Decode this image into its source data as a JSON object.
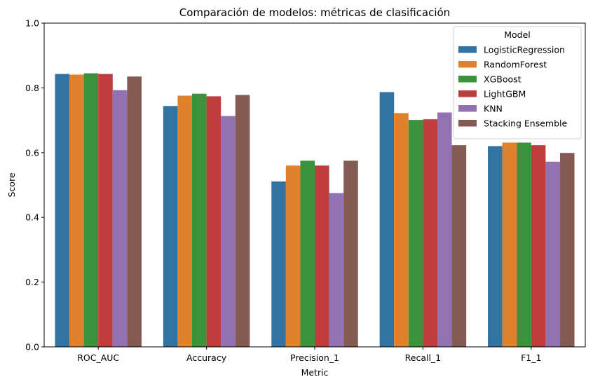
{
  "chart_data": {
    "type": "bar",
    "title": "Comparación de modelos: métricas de clasificación",
    "xlabel": "Metric",
    "ylabel": "Score",
    "ylim": [
      0,
      1
    ],
    "yticks": [
      "0.0",
      "0.2",
      "0.4",
      "0.6",
      "0.8",
      "1.0"
    ],
    "ytick_values": [
      0,
      0.2,
      0.4,
      0.6,
      0.8,
      1.0
    ],
    "categories": [
      "ROC_AUC",
      "Accuracy",
      "Precision_1",
      "Recall_1",
      "F1_1"
    ],
    "legend": {
      "title": "Model",
      "placement": "top-right"
    },
    "grid": false,
    "series": [
      {
        "name": "LogisticRegression",
        "color": "#3274a1",
        "values": [
          0.843,
          0.744,
          0.511,
          0.787,
          0.62
        ]
      },
      {
        "name": "RandomForest",
        "color": "#e1812c",
        "values": [
          0.841,
          0.776,
          0.56,
          0.722,
          0.631
        ]
      },
      {
        "name": "XGBoost",
        "color": "#3a923a",
        "values": [
          0.845,
          0.782,
          0.575,
          0.701,
          0.631
        ]
      },
      {
        "name": "LightGBM",
        "color": "#c03d3e",
        "values": [
          0.843,
          0.774,
          0.56,
          0.703,
          0.623
        ]
      },
      {
        "name": "KNN",
        "color": "#9372b2",
        "values": [
          0.793,
          0.713,
          0.475,
          0.724,
          0.572
        ]
      },
      {
        "name": "Stacking Ensemble",
        "color": "#845b53",
        "values": [
          0.835,
          0.778,
          0.575,
          0.623,
          0.599
        ]
      }
    ]
  }
}
